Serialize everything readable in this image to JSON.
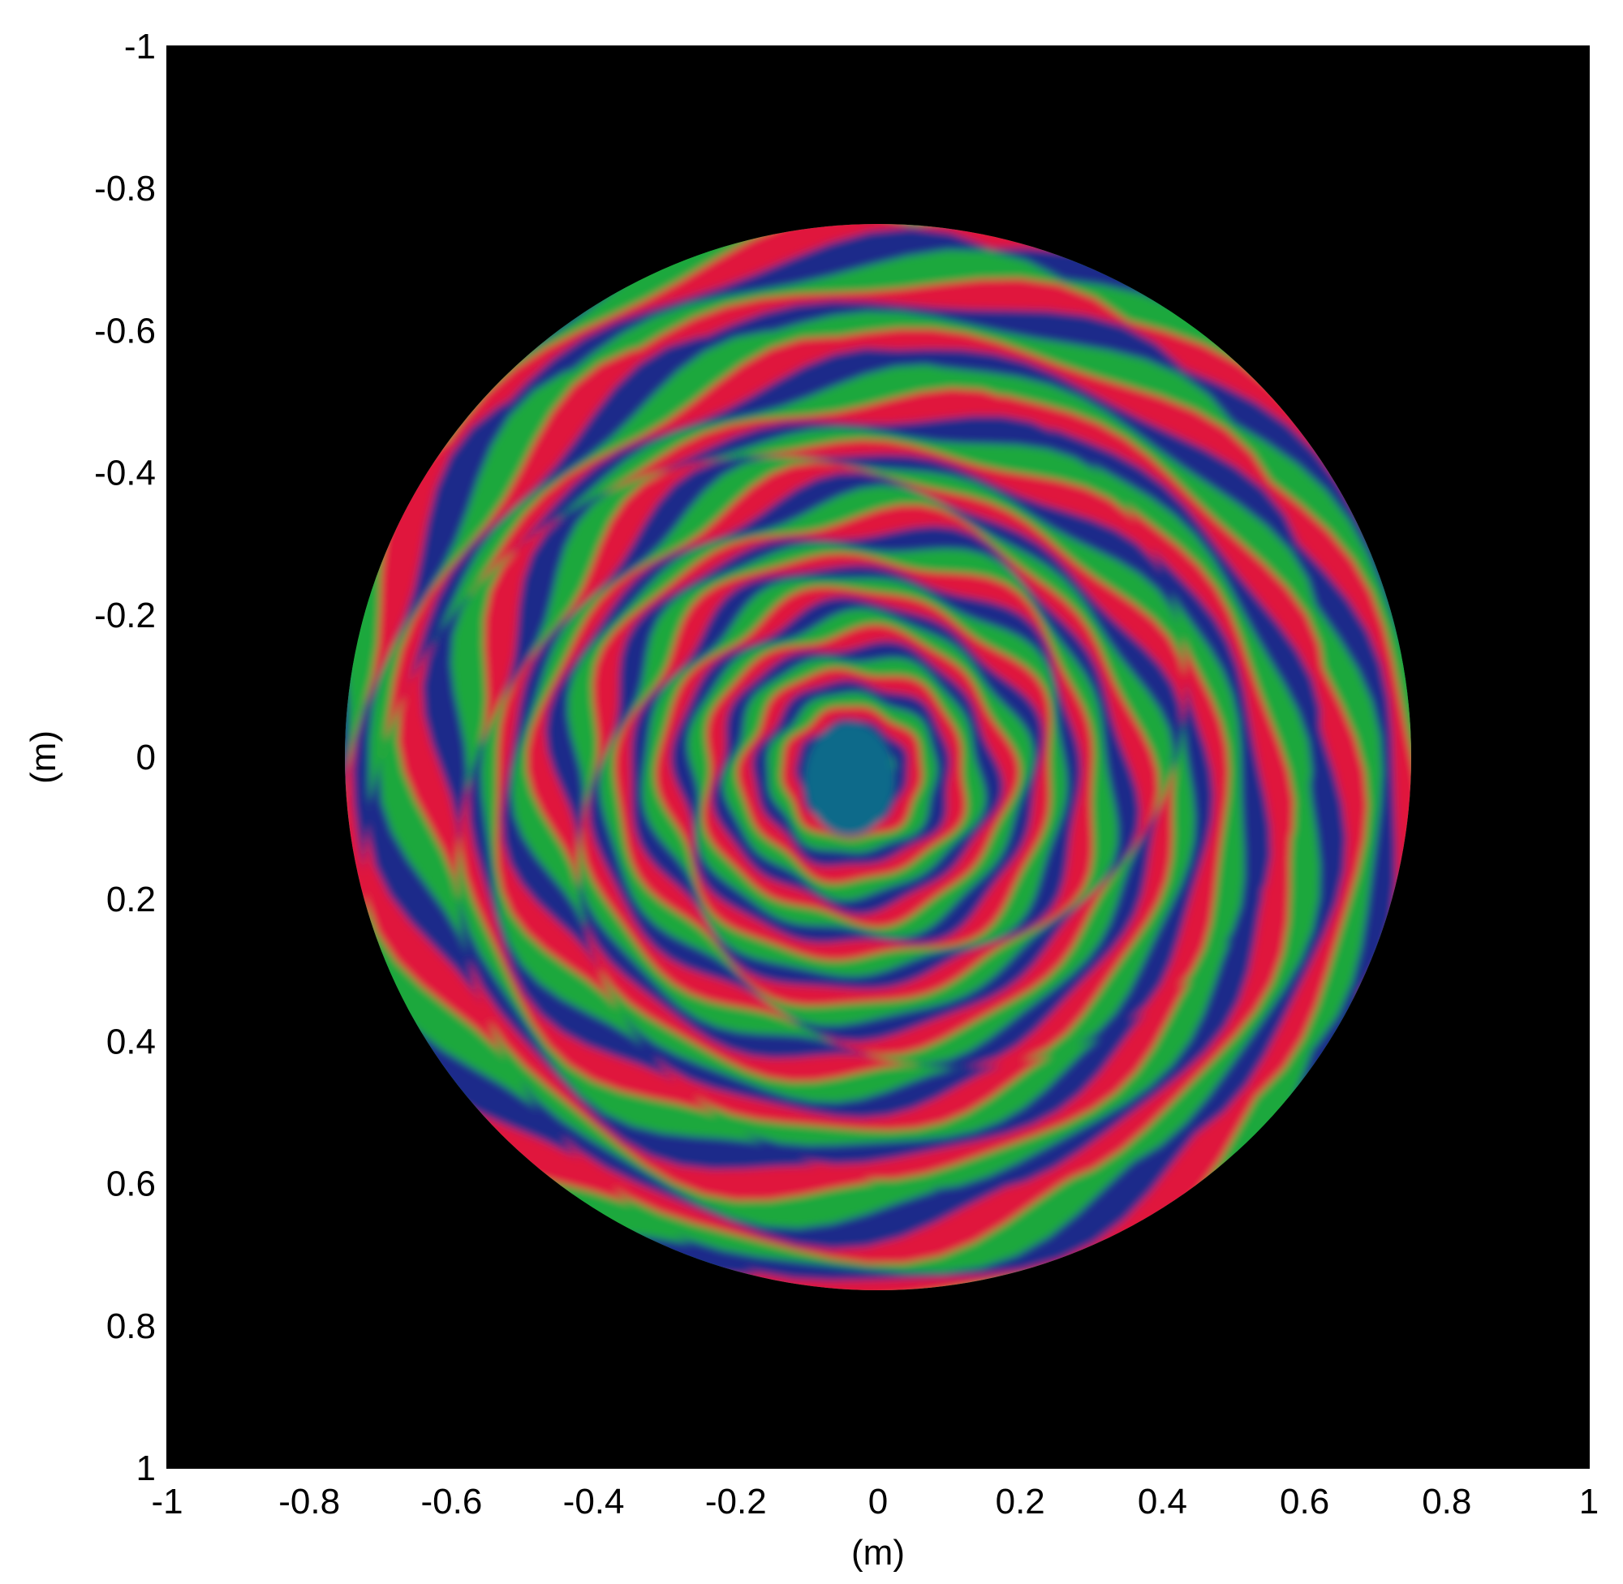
{
  "chart_data": {
    "type": "heatmap",
    "title": "",
    "xlabel": "(m)",
    "ylabel": "(m)",
    "xlim": [
      -1,
      1
    ],
    "ylim": [
      -1,
      1
    ],
    "y_axis_direction": "reversed",
    "x_ticks": [
      "-1",
      "-0.8",
      "-0.6",
      "-0.4",
      "-0.2",
      "0",
      "0.2",
      "0.4",
      "0.6",
      "0.8",
      "1"
    ],
    "y_ticks": [
      "-1",
      "-0.8",
      "-0.6",
      "-0.4",
      "-0.2",
      "0",
      "0.2",
      "0.4",
      "0.6",
      "0.8",
      "1"
    ],
    "background_color": "#000000",
    "aperture": {
      "shape": "circle",
      "center": [
        0,
        0
      ],
      "radius": 0.75
    },
    "fringe_palette": [
      "#1fa83c",
      "#1c2a8a",
      "#e0183c",
      "#1fa83c"
    ],
    "fringe_center": [
      -0.04,
      0.02
    ],
    "grid": false,
    "legend": "none"
  }
}
